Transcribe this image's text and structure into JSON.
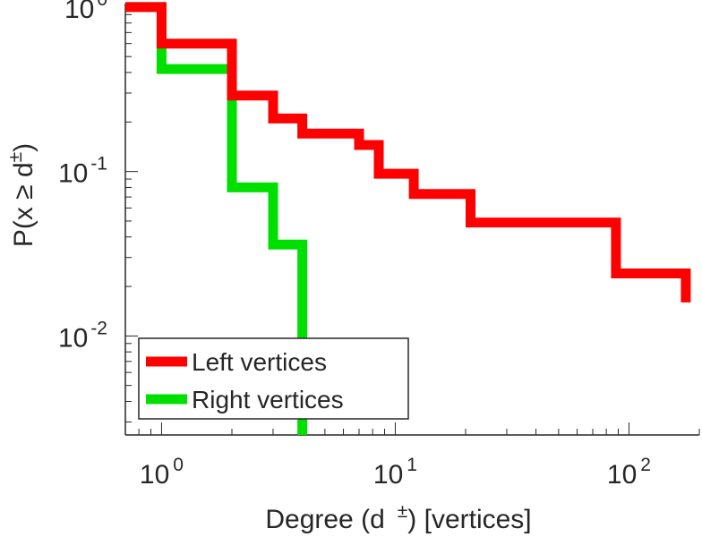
{
  "chart_data": {
    "type": "line",
    "xscale": "log",
    "yscale": "log",
    "xlim": [
      0.7,
      200
    ],
    "ylim": [
      0.0025,
      1.05
    ],
    "xlabel": {
      "pre": "Degree (d",
      "sup": "±",
      "post": ") [vertices]"
    },
    "ylabel": {
      "pre": "P(x ≥ d",
      "sup": "±",
      "post": ")"
    },
    "x_ticks": [
      {
        "value": 1,
        "base": "10",
        "exp": "0"
      },
      {
        "value": 10,
        "base": "10",
        "exp": "1"
      },
      {
        "value": 100,
        "base": "10",
        "exp": "2"
      }
    ],
    "y_ticks": [
      {
        "value": 1,
        "base": "10",
        "exp": "0"
      },
      {
        "value": 0.1,
        "base": "10",
        "exp": "-1"
      },
      {
        "value": 0.01,
        "base": "10",
        "exp": "-2"
      }
    ],
    "grid": false,
    "legend_position": "bottom-left",
    "series": [
      {
        "name": "Left vertices",
        "color": "#ff0000",
        "step": [
          [
            0.7,
            1.0
          ],
          [
            1.0,
            1.0
          ],
          [
            1.0,
            0.6
          ],
          [
            2.0,
            0.6
          ],
          [
            2.0,
            0.29
          ],
          [
            3.0,
            0.29
          ],
          [
            3.0,
            0.21
          ],
          [
            4.0,
            0.21
          ],
          [
            4.0,
            0.17
          ],
          [
            7.0,
            0.17
          ],
          [
            7.0,
            0.145
          ],
          [
            8.5,
            0.145
          ],
          [
            8.5,
            0.097
          ],
          [
            12.0,
            0.097
          ],
          [
            12.0,
            0.073
          ],
          [
            21.0,
            0.073
          ],
          [
            21.0,
            0.049
          ],
          [
            88.0,
            0.049
          ],
          [
            88.0,
            0.024
          ],
          [
            175.0,
            0.024
          ],
          [
            175.0,
            0.016
          ]
        ]
      },
      {
        "name": "Right vertices",
        "color": "#00e000",
        "step": [
          [
            0.7,
            1.0
          ],
          [
            1.0,
            1.0
          ],
          [
            1.0,
            0.42
          ],
          [
            2.0,
            0.42
          ],
          [
            2.0,
            0.08
          ],
          [
            3.0,
            0.08
          ],
          [
            3.0,
            0.036
          ],
          [
            4.0,
            0.036
          ],
          [
            4.0,
            0.0025
          ]
        ]
      }
    ]
  }
}
